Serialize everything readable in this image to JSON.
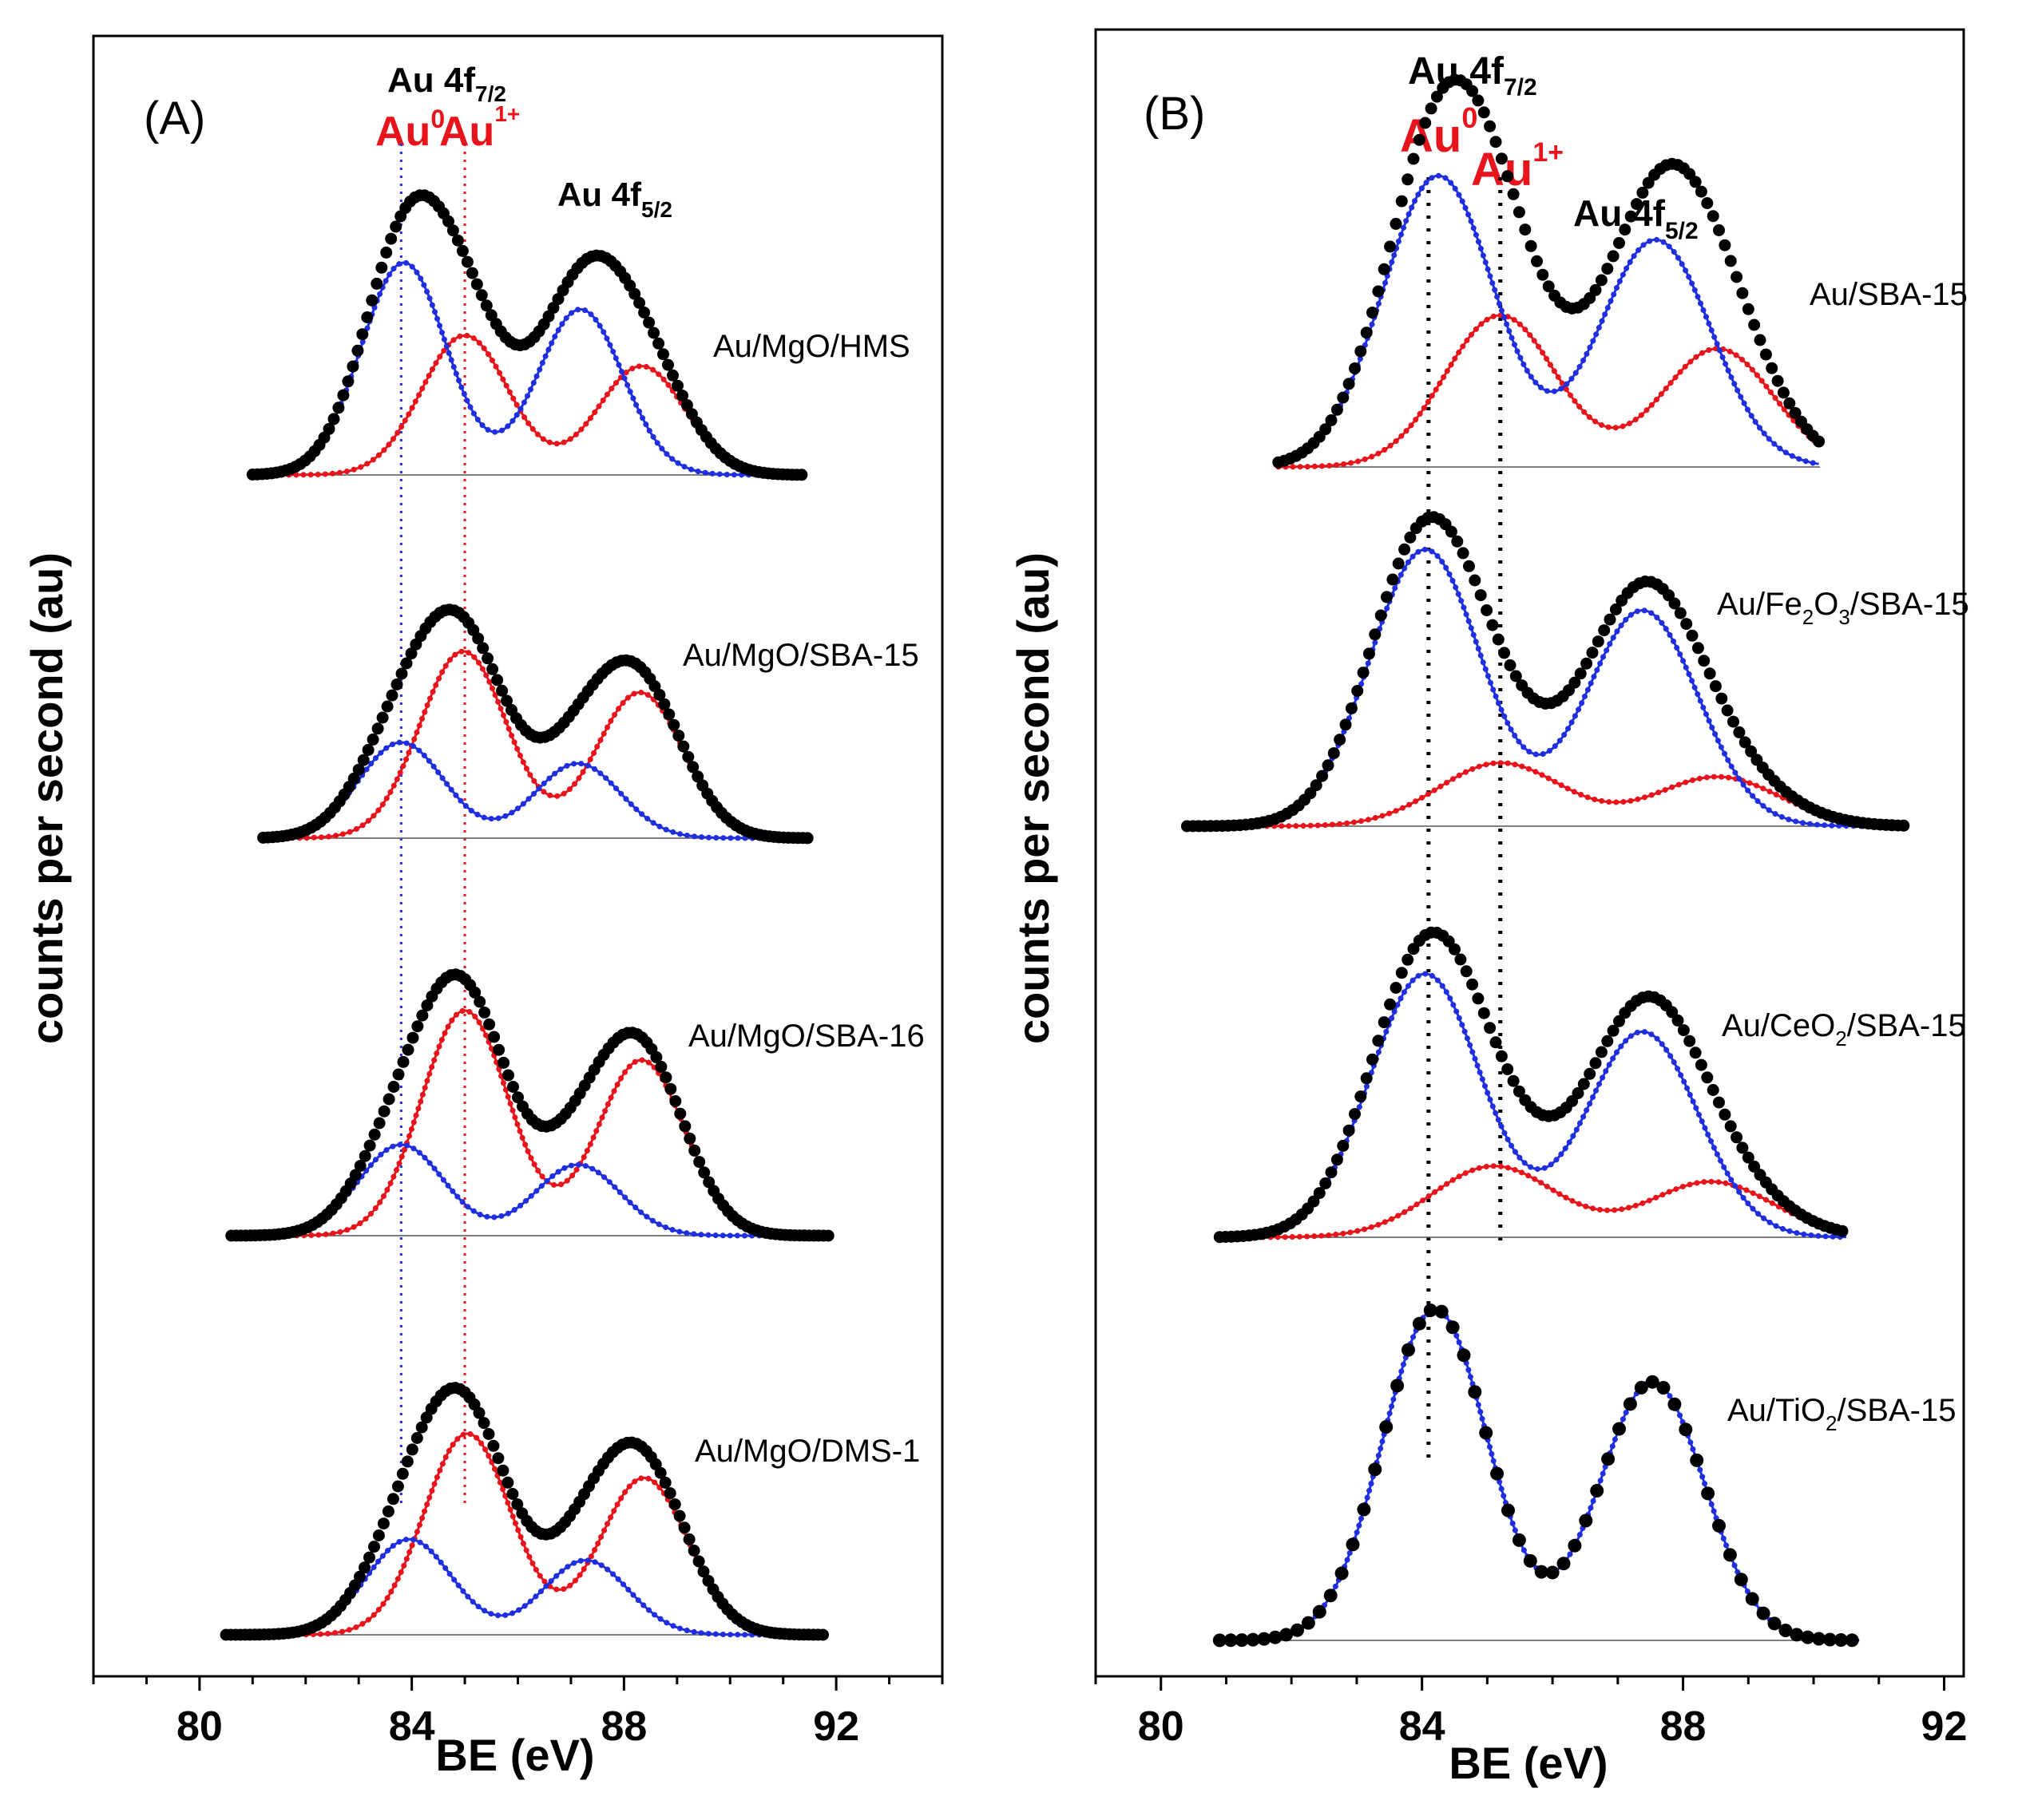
{
  "colors": {
    "au0": "#1f2fe0",
    "au1": "#e8141b",
    "exp": "#000000"
  },
  "chart_data": [
    {
      "type": "line",
      "panel_label": "(A)",
      "xlabel": "BE (eV)",
      "ylabel": "counts per second (au)",
      "xlim": [
        78,
        94
      ],
      "xticks": [
        "80",
        "84",
        "88",
        "92"
      ],
      "peak_labels": {
        "title": "Au 4f",
        "title_sub": "7/2",
        "au0": "Au",
        "au0_sup": "0",
        "au1": "Au",
        "au1_sup": "1+",
        "f52": "Au 4f",
        "f52_sub": "5/2"
      },
      "reference_lines": [
        {
          "name": "Au0",
          "be": 83.8
        },
        {
          "name": "Au1+",
          "be": 85.0
        }
      ],
      "series": [
        {
          "sample": "Au/MgO/HMS",
          "be_range": [
            81,
            91.4
          ],
          "au0": {
            "center": 83.85,
            "amp": 0.7,
            "width": 0.8
          },
          "au1": {
            "center": 85.0,
            "amp": 0.46,
            "width": 0.82
          }
        },
        {
          "sample": "Au/MgO/SBA-15",
          "be_range": [
            81.2,
            91.5
          ],
          "au0": {
            "center": 83.8,
            "amp": 0.4,
            "width": 0.8
          },
          "au1": {
            "center": 84.97,
            "amp": 0.78,
            "width": 0.82
          }
        },
        {
          "sample": "Au/MgO/SBA-16",
          "be_range": [
            80.6,
            91.9
          ],
          "au0": {
            "center": 83.8,
            "amp": 0.38,
            "width": 0.8
          },
          "au1": {
            "center": 85.0,
            "amp": 0.94,
            "width": 0.82
          }
        },
        {
          "sample": "Au/MgO/DMS-1",
          "be_range": [
            80.5,
            91.8
          ],
          "au0": {
            "center": 83.95,
            "amp": 0.38,
            "width": 0.8
          },
          "au1": {
            "center": 85.05,
            "amp": 0.8,
            "width": 0.82
          }
        }
      ]
    },
    {
      "type": "line",
      "panel_label": "(B)",
      "xlabel": "BE (eV)",
      "ylabel": "counts per second (au)",
      "xlim": [
        79,
        92.3
      ],
      "xticks": [
        "80",
        "84",
        "88",
        "92"
      ],
      "peak_labels": {
        "title": "Au 4f",
        "title_sub": "7/2",
        "au0": "Au",
        "au0_sup": "0",
        "au1": "Au",
        "au1_sup": "1+",
        "f52": "Au 4f",
        "f52_sub": "5/2"
      },
      "reference_lines": [
        {
          "name": "Au0",
          "be": 84.1
        },
        {
          "name": "Au1+",
          "be": 85.2
        }
      ],
      "series": [
        {
          "sample": "Au/SBA-15",
          "be_range": [
            81.8,
            90.1
          ],
          "au0": {
            "center": 84.25,
            "amp": 0.96,
            "width": 0.85
          },
          "au1": {
            "center": 85.2,
            "amp": 0.5,
            "width": 0.85
          }
        },
        {
          "sample": "Au/Fe2O3/SBA-15",
          "sample_parts": [
            "Au/Fe",
            "2",
            "O",
            "3",
            "/SBA-15"
          ],
          "be_range": [
            80.4,
            91.4
          ],
          "au0": {
            "center": 84.05,
            "amp": 1.05,
            "width": 0.85
          },
          "au1": {
            "center": 85.2,
            "amp": 0.24,
            "width": 0.95
          }
        },
        {
          "sample": "Au/CeO2/SBA-15",
          "sample_parts": [
            "Au/CeO",
            "2",
            "/SBA-15"
          ],
          "be_range": [
            80.9,
            90.5
          ],
          "au0": {
            "center": 84.05,
            "amp": 1.0,
            "width": 0.85
          },
          "au1": {
            "center": 85.1,
            "amp": 0.27,
            "width": 0.95
          }
        },
        {
          "sample": "Au/TiO2/SBA-15",
          "sample_parts": [
            "Au/TiO",
            "2",
            "/SBA-15"
          ],
          "be_range": [
            80.9,
            90.7
          ],
          "au0": {
            "center": 84.2,
            "amp": 1.0,
            "width": 0.8
          },
          "au1": null
        }
      ]
    }
  ]
}
